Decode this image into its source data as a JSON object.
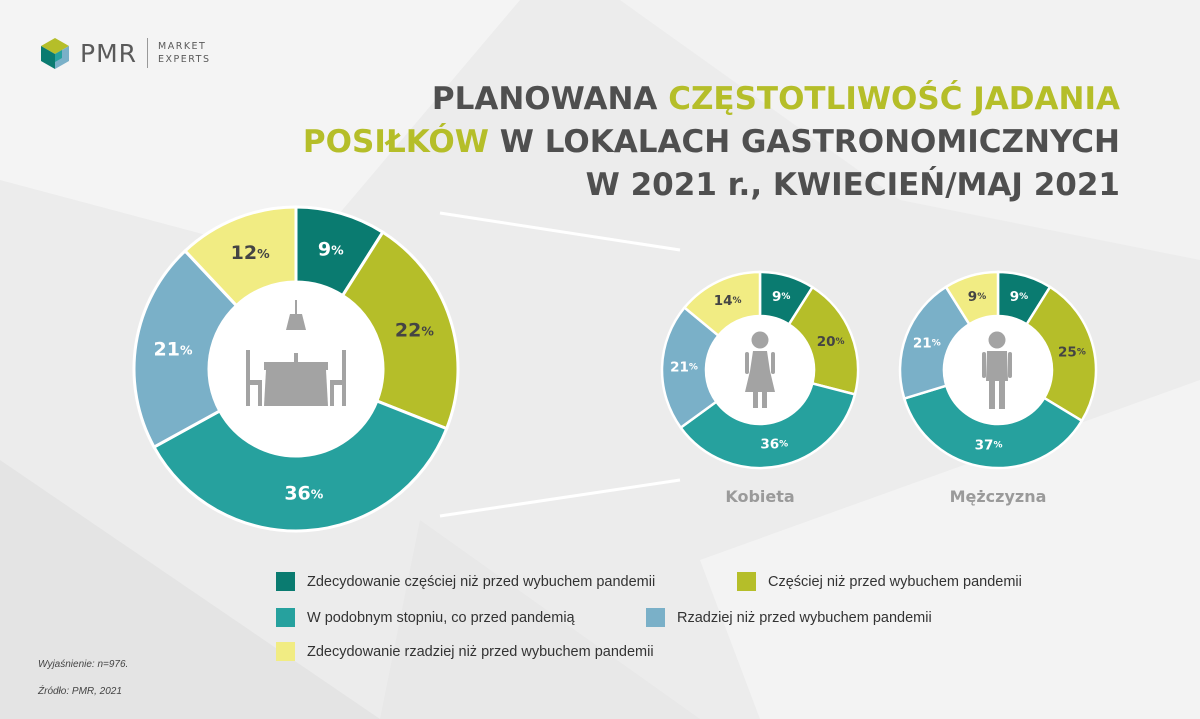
{
  "logo": {
    "name": "PMR",
    "tagline_1": "MARKET",
    "tagline_2": "EXPERTS"
  },
  "title": {
    "part1": "PLANOWANA ",
    "highlight1": "CZĘSTOTLIWOŚĆ JADANIA",
    "highlight2": "POSIŁKÓW",
    "part2": " W LOKALACH GASTRONOMICZNYCH",
    "part3": "W 2021 r., KWIECIEŃ/MAJ 2021"
  },
  "colors": {
    "dark_teal": "#0a7b70",
    "lime": "#b5be29",
    "teal": "#26a19e",
    "light_blue": "#7ab0c8",
    "yellow": "#f1ec83",
    "title_accent": "#b5be29",
    "icon_gray": "#a3a3a3"
  },
  "chart_data": [
    {
      "type": "pie",
      "title": "",
      "categories": [
        "Zdecydowanie częściej niż przed wybuchem pandemii",
        "Częściej niż przed wybuchem pandemii",
        "W podobnym stopniu, co przed pandemią",
        "Rzadziej niż przed wybuchem pandemii",
        "Zdecydowanie rzadziej niż przed wybuchem pandemii"
      ],
      "values": [
        9,
        22,
        36,
        21,
        12
      ],
      "labels": [
        "9",
        "22",
        "36",
        "21",
        "12"
      ],
      "icon": "restaurant-table-icon"
    },
    {
      "type": "pie",
      "title": "Kobieta",
      "categories": [
        "Zdecydowanie częściej niż przed wybuchem pandemii",
        "Częściej niż przed wybuchem pandemii",
        "W podobnym stopniu, co przed pandemią",
        "Rzadziej niż przed wybuchem pandemii",
        "Zdecydowanie rzadziej niż przed wybuchem pandemii"
      ],
      "values": [
        9,
        20,
        36,
        21,
        14
      ],
      "labels": [
        "9",
        "20",
        "36",
        "21",
        "14"
      ],
      "icon": "woman-icon"
    },
    {
      "type": "pie",
      "title": "Mężczyzna",
      "categories": [
        "Zdecydowanie częściej niż przed wybuchem pandemii",
        "Częściej niż przed wybuchem pandemii",
        "W podobnym stopniu, co przed pandemią",
        "Rzadziej niż przed wybuchem pandemii",
        "Zdecydowanie rzadziej niż przed wybuchem pandemii"
      ],
      "values": [
        9,
        25,
        37,
        21,
        9
      ],
      "labels": [
        "9",
        "25",
        "37",
        "21",
        "9"
      ],
      "icon": "man-icon"
    }
  ],
  "legend": {
    "items": [
      {
        "label": "Zdecydowanie częściej niż przed wybuchem pandemii",
        "color": "#0a7b70"
      },
      {
        "label": "Częściej niż przed wybuchem pandemii",
        "color": "#b5be29"
      },
      {
        "label": "W podobnym stopniu, co przed pandemią",
        "color": "#26a19e"
      },
      {
        "label": "Rzadziej niż przed wybuchem pandemii",
        "color": "#7ab0c8"
      },
      {
        "label": "Zdecydowanie rzadziej niż przed wybuchem pandemii",
        "color": "#f1ec83"
      }
    ]
  },
  "percent_sign": "%",
  "footnotes": {
    "explanation": "Wyjaśnienie: n=976.",
    "source": "Źródło: PMR, 2021"
  }
}
